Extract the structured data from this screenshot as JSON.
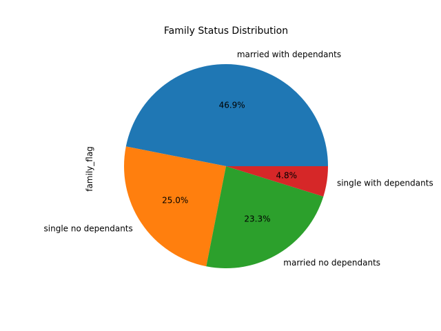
{
  "chart_data": {
    "type": "pie",
    "title": "Family Status Distribution",
    "ylabel": "family_flag",
    "start_angle": 0,
    "direction": "counterclockwise",
    "slices": [
      {
        "label": "married with dependants",
        "value": 46.9,
        "pct_label": "46.9%",
        "color": "#1f77b4"
      },
      {
        "label": "single no dependants",
        "value": 25.0,
        "pct_label": "25.0%",
        "color": "#ff7f0e"
      },
      {
        "label": "married no dependants",
        "value": 23.3,
        "pct_label": "23.3%",
        "color": "#2ca02c"
      },
      {
        "label": "single with dependants",
        "value": 4.8,
        "pct_label": "4.8%",
        "color": "#d62728"
      }
    ]
  }
}
